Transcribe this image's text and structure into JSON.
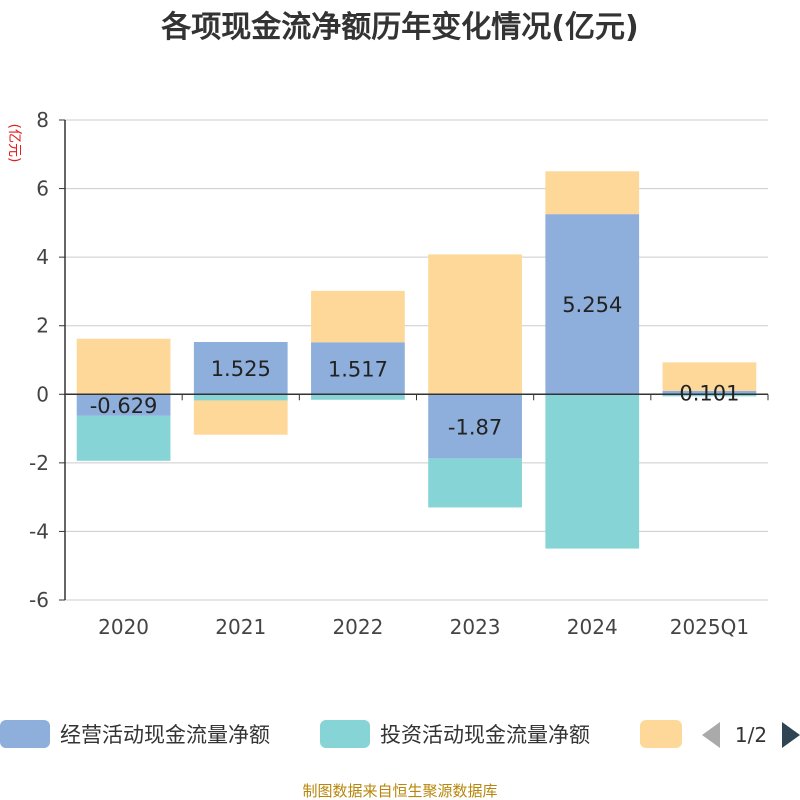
{
  "chart_data": {
    "type": "bar",
    "stacked": true,
    "title": "各项现金流净额历年变化情况(亿元)",
    "ylabel": "(亿元)",
    "categories": [
      "2020",
      "2021",
      "2022",
      "2023",
      "2024",
      "2025Q1"
    ],
    "ylim": [
      -6,
      8
    ],
    "yticks": [
      8,
      6,
      4,
      2,
      0,
      -2,
      -4,
      -6
    ],
    "grid": true,
    "series": [
      {
        "name": "经营活动现金流量净额",
        "color": "#8eaedb",
        "values": [
          -0.629,
          1.525,
          1.517,
          -1.87,
          5.254,
          0.101
        ],
        "labels": [
          "-0.629",
          "1.525",
          "1.517",
          "-1.87",
          "5.254",
          "0.101"
        ]
      },
      {
        "name": "投资活动现金流量净额",
        "color": "#86d4d6",
        "values": [
          -1.31,
          -0.18,
          -0.16,
          -1.43,
          -4.5,
          -0.06
        ]
      },
      {
        "name": "",
        "color": "#fed899",
        "values": [
          1.62,
          -1.0,
          1.5,
          4.08,
          1.25,
          0.83
        ]
      }
    ],
    "legend": {
      "position": "bottom",
      "page": "1/2"
    },
    "source": "制图数据来自恒生聚源数据库"
  }
}
